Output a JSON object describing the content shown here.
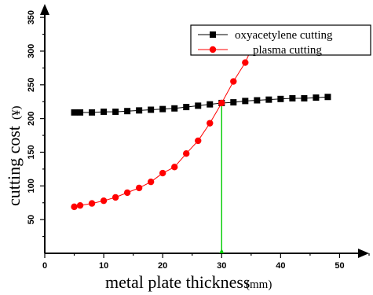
{
  "chart_data": {
    "type": "line",
    "xlabel": "metal plate thickness",
    "xlabel_unit": "(mm)",
    "ylabel": "cutting cost",
    "ylabel_unit": "(¥)",
    "xlim": [
      0,
      55
    ],
    "ylim": [
      0,
      370
    ],
    "x_ticks": [
      0,
      10,
      20,
      30,
      40,
      50
    ],
    "y_ticks": [
      50,
      100,
      150,
      200,
      250,
      300,
      350
    ],
    "legend_position": "top-right",
    "series": [
      {
        "name": "oxyacetylene cutting",
        "color": "#000000",
        "marker": "square",
        "x": [
          5,
          6,
          8,
          10,
          12,
          14,
          16,
          18,
          20,
          22,
          24,
          26,
          28,
          30,
          32,
          34,
          36,
          38,
          40,
          42,
          44,
          46,
          48
        ],
        "y": [
          209,
          209,
          209,
          210,
          210,
          211,
          212,
          213,
          214,
          215,
          217,
          219,
          221,
          223,
          224,
          226,
          227,
          228,
          229,
          230,
          230,
          231,
          232
        ]
      },
      {
        "name": "plasma cutting",
        "color": "#ff0000",
        "marker": "circle",
        "x": [
          5,
          6,
          8,
          10,
          12,
          14,
          16,
          18,
          20,
          22,
          24,
          26,
          28,
          30,
          32,
          34
        ],
        "y": [
          69,
          71,
          74,
          78,
          83,
          90,
          97,
          106,
          119,
          128,
          148,
          167,
          193,
          223,
          255,
          283
        ]
      }
    ],
    "annotations": [
      {
        "type": "vertical-line",
        "x": 30,
        "y": 223,
        "color": "#00cc00"
      }
    ]
  }
}
